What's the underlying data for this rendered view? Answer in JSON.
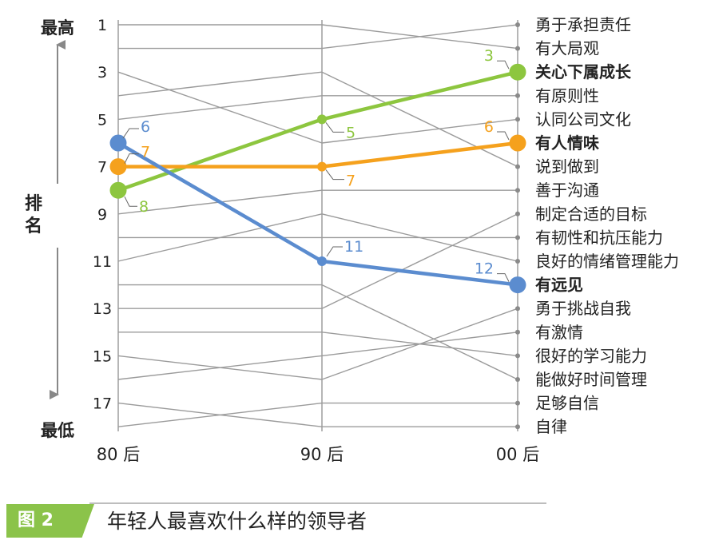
{
  "chart_data": {
    "type": "line",
    "title": "年轻人最喜欢什么样的领导者",
    "figure_label": "图 2",
    "x_categories": [
      "80 后",
      "90 后",
      "00 后"
    ],
    "y_axis": {
      "label": "排名",
      "top_label": "最高",
      "bottom_label": "最低",
      "ticks": [
        "1",
        "3",
        "5",
        "7",
        "9",
        "11",
        "13",
        "15",
        "17"
      ],
      "range": [
        1,
        18
      ],
      "inverted": true
    },
    "traits": [
      "勇于承担责任",
      "有大局观",
      "关心下属成长",
      "有原则性",
      "认同公司文化",
      "有人情味",
      "说到做到",
      "善于沟通",
      "制定合适的目标",
      "有韧性和抗压能力",
      "良好的情绪管理能力",
      "有远见",
      "勇于挑战自我",
      "有激情",
      "很好的学习能力",
      "能做好时间管理",
      "足够自信",
      "自律"
    ],
    "highlighted_traits": [
      "关心下属成长",
      "有人情味",
      "有远见"
    ],
    "gray_links_80_90": [
      [
        1,
        1
      ],
      [
        2,
        2
      ],
      [
        3,
        6
      ],
      [
        4,
        3
      ],
      [
        5,
        4
      ],
      [
        9,
        8
      ],
      [
        10,
        10
      ],
      [
        11,
        9
      ],
      [
        12,
        12
      ],
      [
        13,
        13
      ],
      [
        14,
        14
      ],
      [
        15,
        16
      ],
      [
        16,
        15
      ],
      [
        17,
        18
      ],
      [
        18,
        17
      ]
    ],
    "gray_links_90_00": [
      [
        1,
        2
      ],
      [
        2,
        1
      ],
      [
        3,
        7
      ],
      [
        4,
        4
      ],
      [
        6,
        5
      ],
      [
        8,
        8
      ],
      [
        9,
        11
      ],
      [
        10,
        10
      ],
      [
        12,
        16
      ],
      [
        13,
        9
      ],
      [
        14,
        15
      ],
      [
        15,
        14
      ],
      [
        16,
        13
      ],
      [
        17,
        17
      ],
      [
        18,
        18
      ]
    ],
    "series": [
      {
        "name": "关心下属成长",
        "color": "#8dc63f",
        "values": [
          8,
          5,
          3
        ],
        "labels": [
          "8",
          "5",
          "3"
        ]
      },
      {
        "name": "有人情味",
        "color": "#f5a11d",
        "values": [
          7,
          7,
          6
        ],
        "labels": [
          "7",
          "7",
          "6"
        ]
      },
      {
        "name": "有远见",
        "color": "#5b8ccf",
        "values": [
          6,
          11,
          12
        ],
        "labels": [
          "6",
          "11",
          "12"
        ]
      }
    ]
  }
}
